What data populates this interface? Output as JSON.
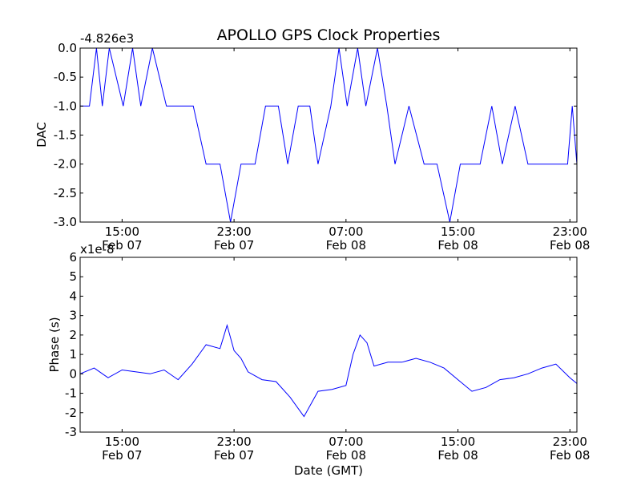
{
  "chart_data": [
    {
      "type": "line",
      "title": "APOLLO GPS Clock Properties",
      "ylabel": "DAC",
      "xlabel": "",
      "offset_text": "-4.826e3",
      "ylim": [
        -3.0,
        0.0
      ],
      "xlim": [
        "Feb 07 12:00",
        "Feb 08 23:30"
      ],
      "grid": false,
      "y_ticks": [
        "0.0",
        "-0.5",
        "-1.0",
        "-1.5",
        "-2.0",
        "-2.5",
        "-3.0"
      ],
      "x_ticks": [
        {
          "time": "15:00",
          "date": "Feb 07"
        },
        {
          "time": "23:00",
          "date": "Feb 07"
        },
        {
          "time": "07:00",
          "date": "Feb 08"
        },
        {
          "time": "15:00",
          "date": "Feb 08"
        },
        {
          "time": "23:00",
          "date": "Feb 08"
        }
      ],
      "color": "#0000ff",
      "series": [
        {
          "x": [
            "Feb 07 12:00",
            "Feb 07 12:40",
            "Feb 07 13:10",
            "Feb 07 13:35",
            "Feb 07 14:05",
            "Feb 07 15:05",
            "Feb 07 15:45",
            "Feb 07 16:20",
            "Feb 07 17:10",
            "Feb 07 18:10",
            "Feb 07 19:05",
            "Feb 07 20:05",
            "Feb 07 21:00",
            "Feb 07 22:00",
            "Feb 07 22:45",
            "Feb 07 23:30",
            "Feb 08 00:30",
            "Feb 08 01:15",
            "Feb 08 02:10",
            "Feb 08 02:50",
            "Feb 08 03:35",
            "Feb 08 04:25",
            "Feb 08 05:00",
            "Feb 08 05:55",
            "Feb 08 06:30",
            "Feb 08 07:05",
            "Feb 08 07:50",
            "Feb 08 08:25",
            "Feb 08 09:15",
            "Feb 08 09:55",
            "Feb 08 10:30",
            "Feb 08 11:30",
            "Feb 08 12:35",
            "Feb 08 13:30",
            "Feb 08 14:25",
            "Feb 08 15:10",
            "Feb 08 15:55",
            "Feb 08 16:35",
            "Feb 08 17:25",
            "Feb 08 18:10",
            "Feb 08 19:05",
            "Feb 08 20:00",
            "Feb 08 20:55",
            "Feb 08 21:55",
            "Feb 08 22:50",
            "Feb 08 23:10",
            "Feb 08 23:30"
          ],
          "y": [
            -1.0,
            -1.0,
            0.0,
            -1.0,
            0.0,
            -1.0,
            0.0,
            -1.0,
            0.0,
            -1.0,
            -1.0,
            -1.0,
            -2.0,
            -2.0,
            -3.0,
            -2.0,
            -2.0,
            -1.0,
            -1.0,
            -2.0,
            -1.0,
            -1.0,
            -2.0,
            -1.0,
            0.0,
            -1.0,
            0.0,
            -1.0,
            0.0,
            -1.0,
            -2.0,
            -1.0,
            -2.0,
            -2.0,
            -3.0,
            -2.0,
            -2.0,
            -2.0,
            -1.0,
            -2.0,
            -1.0,
            -2.0,
            -2.0,
            -2.0,
            -2.0,
            -1.0,
            -2.0
          ]
        }
      ]
    },
    {
      "type": "line",
      "title": "",
      "ylabel": "Phase (s)",
      "xlabel": "Date (GMT)",
      "offset_text": "x1e-8",
      "ylim": [
        -3,
        6
      ],
      "xlim": [
        "Feb 07 12:00",
        "Feb 08 23:30"
      ],
      "grid": false,
      "y_ticks": [
        "6",
        "5",
        "4",
        "3",
        "2",
        "1",
        "0",
        "-1",
        "-2",
        "-3"
      ],
      "x_ticks": [
        {
          "time": "15:00",
          "date": "Feb 07"
        },
        {
          "time": "23:00",
          "date": "Feb 07"
        },
        {
          "time": "07:00",
          "date": "Feb 08"
        },
        {
          "time": "15:00",
          "date": "Feb 08"
        },
        {
          "time": "23:00",
          "date": "Feb 08"
        }
      ],
      "color": "#0000ff",
      "series": [
        {
          "x": [
            "Feb 07 12:00",
            "Feb 07 13:00",
            "Feb 07 14:00",
            "Feb 07 15:00",
            "Feb 07 16:00",
            "Feb 07 17:00",
            "Feb 07 18:00",
            "Feb 07 19:00",
            "Feb 07 20:00",
            "Feb 07 21:00",
            "Feb 07 22:00",
            "Feb 07 22:30",
            "Feb 07 23:00",
            "Feb 07 23:30",
            "Feb 08 00:00",
            "Feb 08 01:00",
            "Feb 08 02:00",
            "Feb 08 03:00",
            "Feb 08 04:00",
            "Feb 08 05:00",
            "Feb 08 06:00",
            "Feb 08 07:00",
            "Feb 08 07:30",
            "Feb 08 08:00",
            "Feb 08 08:30",
            "Feb 08 09:00",
            "Feb 08 10:00",
            "Feb 08 11:00",
            "Feb 08 12:00",
            "Feb 08 13:00",
            "Feb 08 14:00",
            "Feb 08 15:00",
            "Feb 08 16:00",
            "Feb 08 17:00",
            "Feb 08 18:00",
            "Feb 08 19:00",
            "Feb 08 20:00",
            "Feb 08 21:00",
            "Feb 08 22:00",
            "Feb 08 23:00",
            "Feb 08 23:30"
          ],
          "y": [
            0.0,
            0.3,
            -0.2,
            0.2,
            0.1,
            0.0,
            0.2,
            -0.3,
            0.5,
            1.5,
            1.3,
            2.5,
            1.2,
            0.8,
            0.1,
            -0.3,
            -0.4,
            -1.2,
            -2.2,
            -0.9,
            -0.8,
            -0.6,
            1.0,
            2.0,
            1.6,
            0.4,
            0.6,
            0.6,
            0.8,
            0.6,
            0.3,
            -0.3,
            -0.9,
            -0.7,
            -0.3,
            -0.2,
            0.0,
            0.3,
            0.5,
            -0.2,
            -0.5
          ]
        }
      ]
    }
  ]
}
